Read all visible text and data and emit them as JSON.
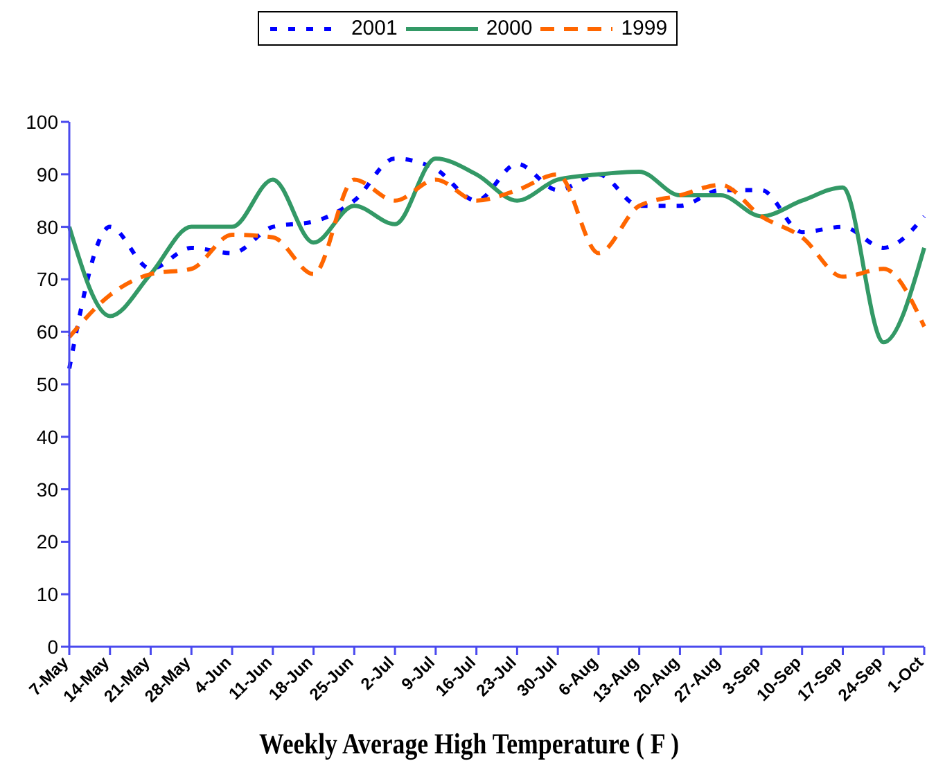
{
  "chart_data": {
    "type": "line",
    "xlabel": "Weekly Average High Temperature ( F )",
    "categories": [
      "7-May",
      "14-May",
      "21-May",
      "28-May",
      "4-Jun",
      "11-Jun",
      "18-Jun",
      "25-Jun",
      "2-Jul",
      "9-Jul",
      "16-Jul",
      "23-Jul",
      "30-Jul",
      "6-Aug",
      "13-Aug",
      "20-Aug",
      "27-Aug",
      "3-Sep",
      "10-Sep",
      "17-Sep",
      "24-Sep",
      "1-Oct"
    ],
    "series": [
      {
        "name": "2001",
        "color": "#0000ff",
        "line_style": "dotted",
        "values": [
          53,
          80,
          72,
          76,
          75,
          80,
          81,
          85,
          93,
          91,
          85,
          92,
          87,
          90,
          84,
          84,
          87,
          87,
          79,
          80,
          76,
          82
        ]
      },
      {
        "name": "2000",
        "color": "#339966",
        "line_style": "solid",
        "values": [
          80,
          63,
          71,
          80,
          80,
          89,
          77,
          84,
          80.5,
          93,
          90,
          85,
          89,
          90,
          90.5,
          86,
          86,
          82,
          85,
          87.5,
          58,
          76
        ]
      },
      {
        "name": "1999",
        "color": "#ff6600",
        "line_style": "dashed",
        "values": [
          59,
          67,
          71,
          72,
          78.5,
          78,
          71,
          89,
          85,
          89,
          85,
          87,
          90,
          75,
          84,
          86,
          88,
          82,
          78,
          70.5,
          72,
          61
        ]
      }
    ],
    "ylim": [
      0,
      100
    ],
    "yticks": [
      0,
      10,
      20,
      30,
      40,
      50,
      60,
      70,
      80,
      90,
      100
    ],
    "grid": false,
    "legend": "top",
    "marker": "none"
  }
}
